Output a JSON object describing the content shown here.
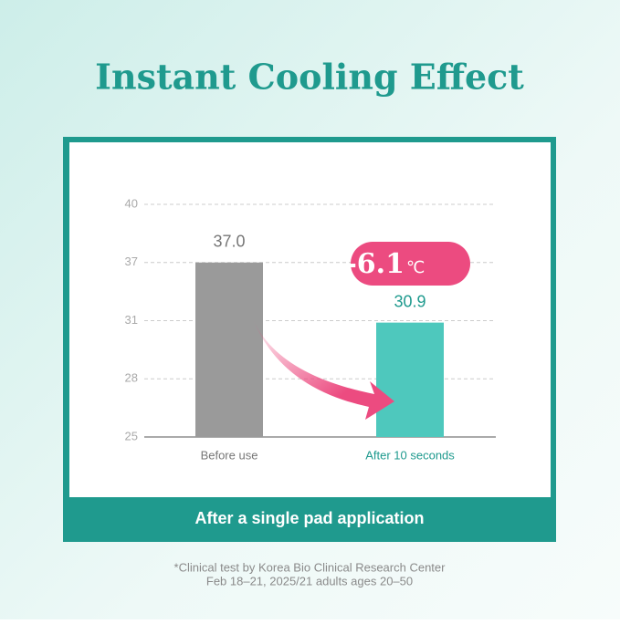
{
  "chart_data": {
    "type": "bar",
    "title": "Instant Cooling Effect",
    "categories": [
      "Before use",
      "After 10 seconds"
    ],
    "values": [
      37.0,
      30.9
    ],
    "value_labels": [
      "37.0",
      "30.9"
    ],
    "colors": [
      "#9a9a9a",
      "#4ec8bd"
    ],
    "ylim": [
      25,
      40
    ],
    "yticks": [
      25,
      28,
      31,
      37,
      40
    ],
    "grid": true,
    "delta": "-6.1",
    "delta_unit": "℃",
    "caption": "After a single pad application",
    "footnote": [
      "*Clinical test by Korea Bio Clinical Research Center",
      "Feb 18–21, 2025/21 adults ages 20–50"
    ]
  }
}
